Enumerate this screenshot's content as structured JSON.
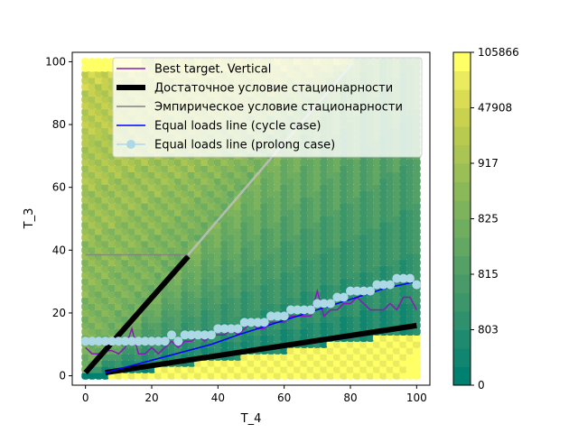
{
  "chart_data": {
    "type": "heatmap",
    "xlabel": "T_4",
    "ylabel": "T_3",
    "xlim": [
      -4,
      104
    ],
    "ylim": [
      -3,
      103
    ],
    "x_ticks": [
      0,
      20,
      40,
      60,
      80,
      100
    ],
    "y_ticks": [
      0,
      20,
      40,
      60,
      80,
      100
    ],
    "legend_position": "top-center",
    "grid": false,
    "colorbar": {
      "tick_labels": [
        "0",
        "803",
        "815",
        "825",
        "917",
        "47908",
        "105866"
      ],
      "num_levels": 18,
      "colors": [
        "#00806e",
        "#108570",
        "#1f8b6e",
        "#2e906c",
        "#3b966a",
        "#489b68",
        "#55a165",
        "#62a762",
        "#6fad5f",
        "#7db35c",
        "#8bb958",
        "#9abf55",
        "#aac551",
        "#b9cb4e",
        "#c9d24e",
        "#dadc54",
        "#ebeb5f",
        "#ffff66"
      ]
    },
    "series": [
      {
        "name": "Best target. Vertical",
        "color": "#8b1ab5",
        "style": "line",
        "x": [
          0,
          2,
          4,
          6,
          8,
          10,
          12,
          14,
          16,
          18,
          20,
          22,
          24,
          26,
          28,
          30,
          32,
          34,
          36,
          38,
          40,
          42,
          44,
          46,
          48,
          50,
          52,
          54,
          56,
          58,
          60,
          62,
          64,
          66,
          68,
          70,
          72,
          74,
          76,
          78,
          80,
          82,
          84,
          86,
          88,
          90,
          92,
          94,
          96,
          98,
          100
        ],
        "y": [
          9,
          7,
          7,
          8,
          8,
          7,
          9,
          15,
          7,
          7,
          9,
          7,
          9,
          11,
          9,
          11,
          11,
          13,
          11,
          13,
          13,
          13,
          15,
          13,
          15,
          17,
          15,
          15,
          17,
          17,
          17,
          19,
          19,
          19,
          19,
          27,
          19,
          21,
          21,
          23,
          23,
          25,
          23,
          21,
          21,
          21,
          23,
          21,
          25,
          25,
          21
        ]
      },
      {
        "name": "Достаточное условие стационарности",
        "color": "#000000",
        "style": "thick",
        "segments": [
          [
            [
              0,
              1
            ],
            [
              31,
              38
            ]
          ],
          [
            [
              6,
              1
            ],
            [
              100,
              16
            ]
          ]
        ]
      },
      {
        "name": "Эмпирическое условие стационарности",
        "color": "#808080",
        "style": "line",
        "segments": [
          [
            [
              0,
              38.5
            ],
            [
              31,
              38.5
            ]
          ],
          [
            [
              31,
              38.5
            ],
            [
              81,
              100
            ]
          ]
        ]
      },
      {
        "name": "Equal loads line (cycle case)",
        "color": "#0000ff",
        "style": "line",
        "x": [
          6,
          38,
          46,
          55,
          67,
          79,
          91,
          100
        ],
        "y": [
          1,
          10,
          13,
          16,
          20,
          24,
          28,
          30
        ]
      },
      {
        "name": "Equal loads line (prolong case)",
        "color": "#add8e6",
        "style": "marker-line",
        "x": [
          0,
          2,
          4,
          6,
          8,
          10,
          12,
          14,
          16,
          18,
          20,
          22,
          24,
          26,
          28,
          30,
          32,
          34,
          36,
          38,
          40,
          42,
          44,
          46,
          48,
          50,
          52,
          54,
          56,
          58,
          60,
          62,
          64,
          66,
          68,
          70,
          72,
          74,
          76,
          78,
          80,
          82,
          84,
          86,
          88,
          90,
          92,
          94,
          96,
          98,
          100
        ],
        "y": [
          11,
          11,
          11,
          11,
          11,
          11,
          11,
          11,
          11,
          11,
          11,
          11,
          11,
          13,
          11,
          13,
          13,
          13,
          13,
          13,
          15,
          15,
          15,
          15,
          17,
          17,
          17,
          17,
          19,
          19,
          19,
          21,
          21,
          21,
          21,
          23,
          23,
          23,
          25,
          25,
          27,
          27,
          27,
          27,
          29,
          29,
          29,
          31,
          31,
          31,
          29
        ]
      }
    ]
  }
}
